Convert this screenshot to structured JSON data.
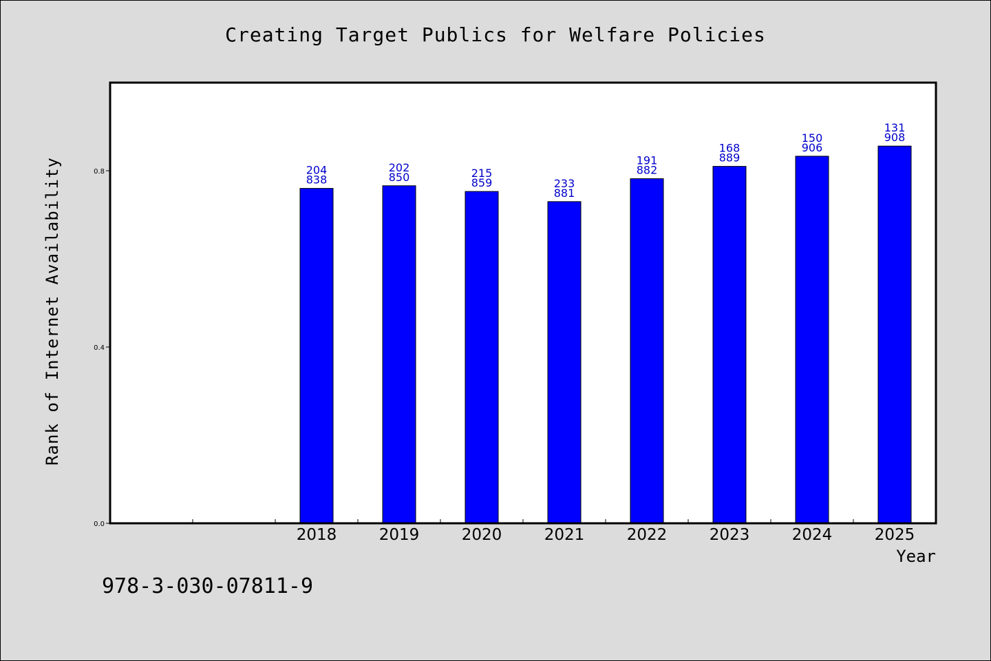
{
  "chart_data": {
    "type": "bar",
    "title": "Creating Target Publics for Welfare Policies",
    "xlabel": "Year",
    "ylabel": "Rank of Internet Availability",
    "categories": [
      "",
      "",
      "2018",
      "2019",
      "2020",
      "2021",
      "2022",
      "2023",
      "2024",
      "2025"
    ],
    "values": [
      null,
      null,
      0.76,
      0.766,
      0.753,
      0.73,
      0.782,
      0.81,
      0.833,
      0.856
    ],
    "bar_labels_top": [
      "",
      "",
      "204",
      "202",
      "215",
      "233",
      "191",
      "168",
      "150",
      "131"
    ],
    "bar_labels_bottom": [
      "",
      "",
      "838",
      "850",
      "859",
      "881",
      "882",
      "889",
      "906",
      "908"
    ],
    "ylim": [
      0,
      1.0
    ],
    "yticks": [
      0.0,
      0.4,
      0.8
    ],
    "ytick_labels": [
      "0.0",
      "0.4",
      "0.8"
    ],
    "grid": false,
    "bar_color": "#0000ff",
    "label_color": "#0000cc"
  },
  "footer_code": "978-3-030-07811-9"
}
